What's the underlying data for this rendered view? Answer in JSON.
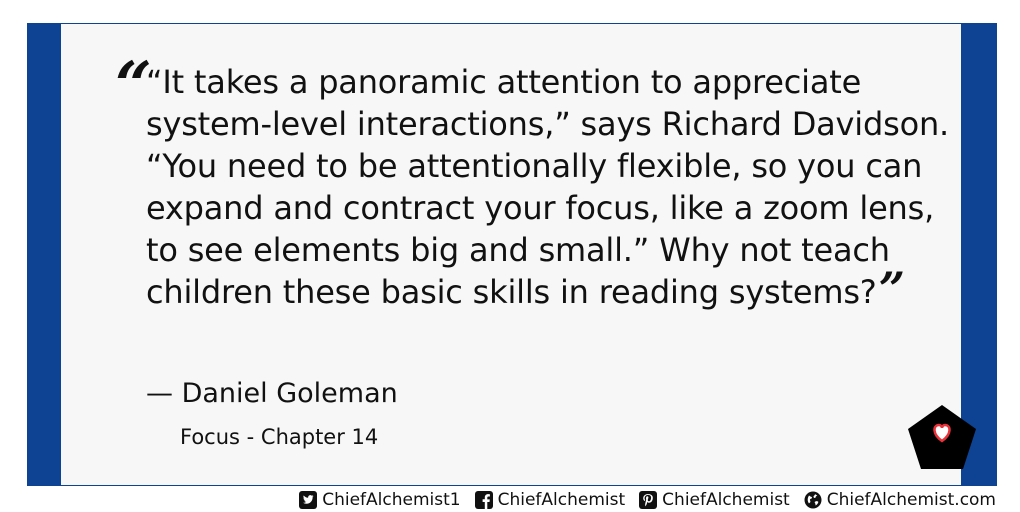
{
  "quote": {
    "open_mark": "“",
    "text": "“It takes a panoramic attention to appreciate system-level interactions,” says Richard Davidson. “You need to be attentionally flexible, so you can expand and contract your focus, like a zoom lens, to see elements big and small.” Why not teach children these basic skills in reading systems?",
    "close_mark": "”",
    "author": "— Daniel Goleman",
    "source": "Focus - Chapter 14"
  },
  "badge": {
    "icon": "heart-pentagon-logo",
    "colors": {
      "pentagon": "#000000",
      "heart": "#e8333a"
    }
  },
  "footer": {
    "twitter": {
      "icon": "twitter-icon",
      "label": "ChiefAlchemist1"
    },
    "facebook": {
      "icon": "facebook-icon",
      "label": "ChiefAlchemist"
    },
    "pinterest": {
      "icon": "pinterest-icon",
      "label": "ChiefAlchemist"
    },
    "website": {
      "icon": "globe-icon",
      "label": "ChiefAlchemist.com"
    }
  },
  "colors": {
    "frame": "#0d4392",
    "panel": "#f7f7f7",
    "text": "#111111"
  }
}
